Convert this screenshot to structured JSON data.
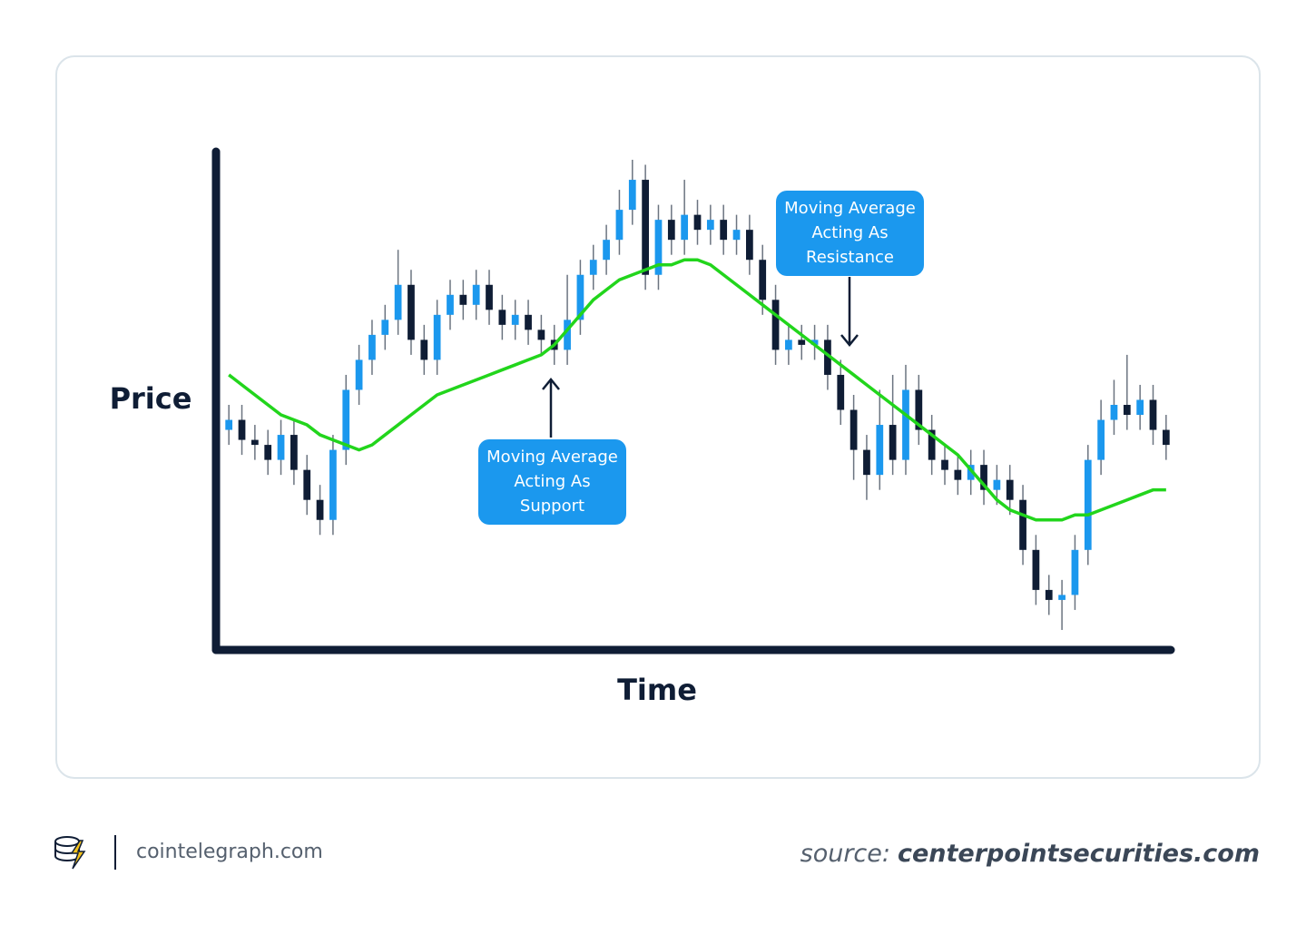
{
  "chart_data": {
    "type": "candlestick",
    "y_label": "Price",
    "x_label": "Time",
    "ylim": [
      0,
      100
    ],
    "up_color": "#1b98ee",
    "down_color": "#0f1d35",
    "open": [
      44,
      46,
      42,
      41,
      38,
      43,
      36,
      30,
      26,
      40,
      52,
      58,
      63,
      66,
      73,
      62,
      58,
      67,
      71,
      69,
      73,
      68,
      65,
      67,
      64,
      62,
      60,
      66,
      75,
      78,
      82,
      88,
      94,
      75,
      86,
      82,
      87,
      84,
      86,
      82,
      84,
      78,
      70,
      60,
      62,
      61,
      62,
      55,
      48,
      40,
      35,
      45,
      38,
      52,
      44,
      38,
      36,
      34,
      37,
      32,
      34,
      30,
      20,
      12,
      10,
      11,
      20,
      38,
      46,
      49,
      47,
      50,
      44
    ],
    "high": [
      49,
      49,
      45,
      44,
      46,
      46,
      39,
      33,
      43,
      55,
      61,
      66,
      69,
      80,
      76,
      65,
      70,
      74,
      74,
      76,
      76,
      71,
      70,
      70,
      67,
      65,
      75,
      78,
      81,
      85,
      92,
      98,
      97,
      89,
      89,
      94,
      90,
      89,
      89,
      87,
      87,
      81,
      73,
      65,
      65,
      65,
      65,
      58,
      51,
      43,
      52,
      55,
      57,
      55,
      47,
      41,
      39,
      40,
      40,
      37,
      37,
      33,
      23,
      15,
      14,
      23,
      41,
      50,
      54,
      59,
      53,
      53,
      47
    ],
    "low": [
      41,
      39,
      38,
      35,
      35,
      33,
      27,
      23,
      23,
      37,
      49,
      55,
      60,
      63,
      59,
      55,
      55,
      64,
      66,
      66,
      65,
      62,
      62,
      61,
      59,
      57,
      57,
      63,
      72,
      75,
      79,
      85,
      72,
      72,
      79,
      79,
      81,
      81,
      79,
      79,
      75,
      67,
      57,
      57,
      58,
      58,
      52,
      45,
      34,
      30,
      32,
      35,
      35,
      41,
      35,
      33,
      31,
      31,
      29,
      29,
      27,
      17,
      9,
      7,
      4,
      8,
      17,
      35,
      43,
      44,
      44,
      41,
      38
    ],
    "close": [
      46,
      42,
      41,
      38,
      43,
      36,
      30,
      26,
      40,
      52,
      58,
      63,
      66,
      73,
      62,
      58,
      67,
      71,
      69,
      73,
      68,
      65,
      67,
      64,
      62,
      60,
      66,
      75,
      78,
      82,
      88,
      94,
      75,
      86,
      82,
      87,
      84,
      86,
      82,
      84,
      78,
      70,
      60,
      62,
      61,
      62,
      55,
      48,
      40,
      35,
      45,
      38,
      52,
      44,
      38,
      36,
      34,
      37,
      32,
      34,
      30,
      20,
      12,
      10,
      11,
      20,
      38,
      46,
      49,
      47,
      50,
      44,
      41
    ],
    "moving_average": {
      "color": "#22d51c",
      "values": [
        55,
        53,
        51,
        49,
        47,
        46,
        45,
        43,
        42,
        41,
        40,
        41,
        43,
        45,
        47,
        49,
        51,
        52,
        53,
        54,
        55,
        56,
        57,
        58,
        59,
        61,
        64,
        67,
        70,
        72,
        74,
        75,
        76,
        77,
        77,
        78,
        78,
        77,
        75,
        73,
        71,
        69,
        67,
        65,
        63,
        61,
        59,
        57,
        55,
        53,
        51,
        49,
        47,
        45,
        43,
        41,
        39,
        36,
        33,
        30,
        28,
        27,
        26,
        26,
        26,
        27,
        27,
        28,
        29,
        30,
        31,
        32,
        32
      ]
    },
    "annotations": [
      {
        "lines": [
          "Moving Average",
          "Acting As",
          "Support"
        ],
        "color": "#1b98ee"
      },
      {
        "lines": [
          "Moving Average",
          "Acting As",
          "Resistance"
        ],
        "color": "#1b98ee"
      }
    ]
  },
  "footer": {
    "brand": "cointelegraph.com",
    "source_prefix": "source:",
    "source": "centerpointsecurities.com"
  }
}
